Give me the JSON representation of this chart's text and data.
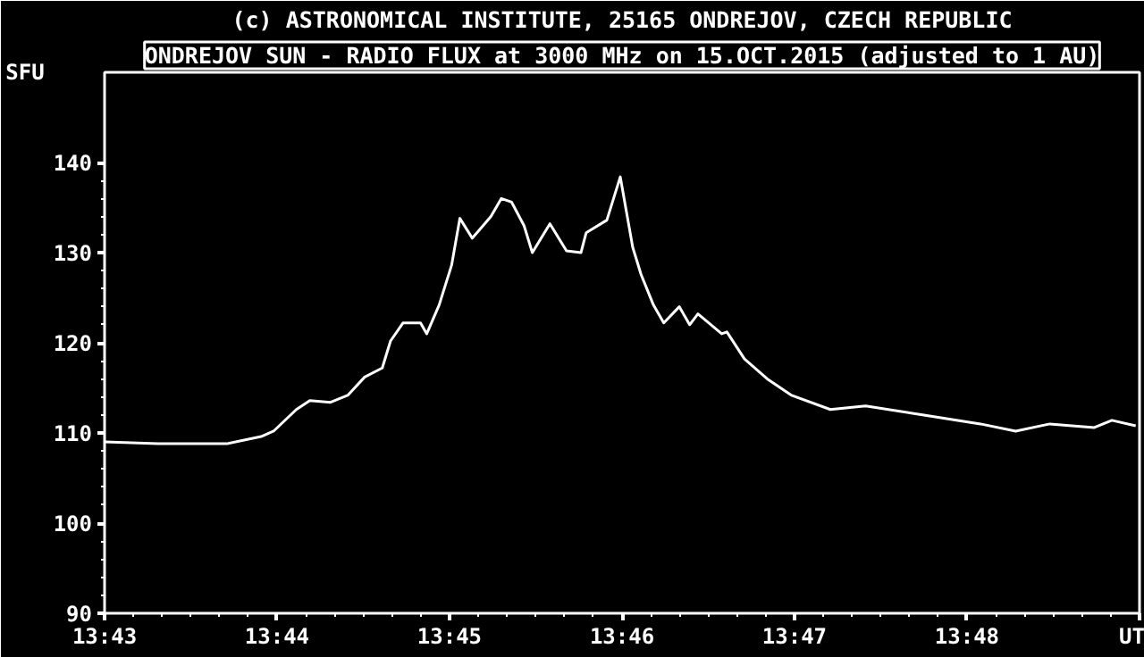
{
  "chart_data": {
    "type": "line",
    "subtitle": "(c) ASTRONOMICAL INSTITUTE, 25165 ONDREJOV, CZECH REPUBLIC",
    "title": "ONDREJOV SUN - RADIO FLUX at 3000 MHz on 15.OCT.2015 (adjusted to 1 AU)",
    "ylabel": "SFU",
    "x": [
      13.7167,
      13.7218,
      13.7285,
      13.7318,
      13.733,
      13.7352,
      13.7365,
      13.7385,
      13.7402,
      13.7418,
      13.7435,
      13.7443,
      13.7455,
      13.7472,
      13.7478,
      13.749,
      13.7502,
      13.751,
      13.7522,
      13.754,
      13.755,
      13.756,
      13.7572,
      13.758,
      13.7597,
      13.7613,
      13.7627,
      13.7632,
      13.7652,
      13.7665,
      13.7677,
      13.7685,
      13.7697,
      13.7707,
      13.7722,
      13.7732,
      13.774,
      13.7763,
      13.7768,
      13.7785,
      13.7807,
      13.783,
      13.7868,
      13.7902,
      13.7957,
      13.8013,
      13.8047,
      13.808,
      13.8123,
      13.814,
      13.8163
    ],
    "series": [
      {
        "color": "#ffffff",
        "values": [
          109,
          108.8,
          108.8,
          109.6,
          110.2,
          112.6,
          113.6,
          113.4,
          114.2,
          116.2,
          117.2,
          120.2,
          122.2,
          122.2,
          121,
          124.2,
          128.6,
          133.8,
          131.6,
          134,
          136,
          135.6,
          133,
          130,
          133.2,
          130.2,
          130,
          132.2,
          133.6,
          138.4,
          130.6,
          127.6,
          124.2,
          122.2,
          124,
          122,
          123.2,
          121,
          121.2,
          118.2,
          116,
          114.2,
          112.6,
          113,
          112,
          111,
          110.2,
          111,
          110.6,
          111.4,
          110.8
        ]
      }
    ],
    "xlim": [
      13.71667,
      13.81667
    ],
    "xticks": [
      {
        "value": 13.71667,
        "label": "13:43"
      },
      {
        "value": 13.73333,
        "label": "13:44"
      },
      {
        "value": 13.75,
        "label": "13:45"
      },
      {
        "value": 13.76667,
        "label": "13:46"
      },
      {
        "value": 13.78333,
        "label": "13:47"
      },
      {
        "value": 13.8,
        "label": "13:48"
      },
      {
        "value": 13.81667,
        "label": "UT"
      }
    ],
    "ylim": [
      90,
      150
    ],
    "yticks": [
      90,
      100,
      110,
      120,
      130,
      140
    ],
    "grid": false,
    "marker": "none",
    "line_style": "solid"
  }
}
